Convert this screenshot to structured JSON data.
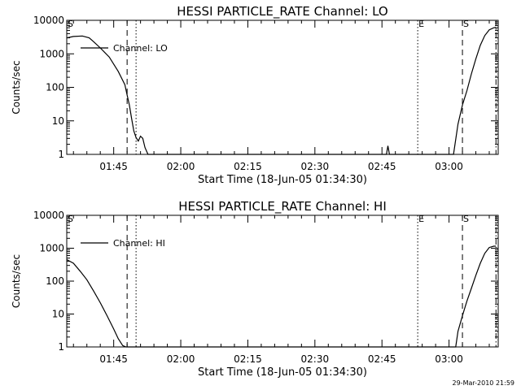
{
  "chart_data": [
    {
      "type": "line",
      "title": "HESSI PARTICLE_RATE Channel: LO",
      "xlabel": "Start Time (18-Jun-05 01:34:30)",
      "ylabel": "Counts/sec",
      "y_scale": "log",
      "ylim": [
        1,
        10000
      ],
      "y_ticks": [
        1,
        10,
        100,
        1000,
        10000
      ],
      "y_tick_labels": [
        "1",
        "10",
        "100",
        "1000",
        "10000"
      ],
      "xlim": [
        "01:34:30",
        "03:11:00"
      ],
      "x_ticks": [
        "01:45",
        "02:00",
        "02:15",
        "02:30",
        "02:45",
        "03:00"
      ],
      "x_tick_labels": [
        "01:45",
        "02:00",
        "02:15",
        "02:30",
        "02:45",
        "03:00"
      ],
      "legend_position": "top-left",
      "series": [
        {
          "name": "Channel: LO",
          "x": [
            "01:34:30",
            "01:36:00",
            "01:38:00",
            "01:39:30",
            "01:40:30",
            "01:42:00",
            "01:44:00",
            "01:46:00",
            "01:47:30",
            "01:48:00",
            "01:48:30",
            "01:49:00",
            "01:49:30",
            "01:50:00",
            "01:50:30",
            "01:51:00",
            "01:51:30",
            "01:52:00",
            "01:52:40",
            "01:53:00",
            "02:46:00",
            "02:46:20",
            "02:46:40",
            "03:01:00",
            "03:02:00",
            "03:03:00",
            "03:04:00",
            "03:05:00",
            "03:06:00",
            "03:07:00",
            "03:08:00",
            "03:09:00",
            "03:10:00",
            "03:10:30"
          ],
          "y": [
            3000,
            3300,
            3400,
            3000,
            2300,
            1500,
            800,
            300,
            120,
            60,
            30,
            12,
            5,
            3.2,
            2.5,
            3.5,
            3,
            1.6,
            1,
            1,
            1,
            1.8,
            1,
            1,
            8,
            30,
            80,
            250,
            700,
            1800,
            3500,
            5200,
            6000,
            6200
          ]
        }
      ],
      "markers": [
        {
          "label": "S",
          "x": "01:34:30",
          "style": "dash-dot"
        },
        {
          "label": "",
          "x": "01:48:00",
          "style": "dashed"
        },
        {
          "label": "",
          "x": "01:50:00",
          "style": "dotted"
        },
        {
          "label": "E",
          "x": "02:53:00",
          "style": "dotted"
        },
        {
          "label": "S",
          "x": "03:03:00",
          "style": "dashed"
        },
        {
          "label": "",
          "x": "03:10:30",
          "style": "dash-dot"
        }
      ]
    },
    {
      "type": "line",
      "title": "HESSI PARTICLE_RATE Channel: HI",
      "xlabel": "Start Time (18-Jun-05 01:34:30)",
      "ylabel": "Counts/sec",
      "y_scale": "log",
      "ylim": [
        1,
        10000
      ],
      "y_ticks": [
        1,
        10,
        100,
        1000,
        10000
      ],
      "y_tick_labels": [
        "1",
        "10",
        "100",
        "1000",
        "10000"
      ],
      "xlim": [
        "01:34:30",
        "03:11:00"
      ],
      "x_ticks": [
        "01:45",
        "02:00",
        "02:15",
        "02:30",
        "02:45",
        "03:00"
      ],
      "x_tick_labels": [
        "01:45",
        "02:00",
        "02:15",
        "02:30",
        "02:45",
        "03:00"
      ],
      "legend_position": "top-left",
      "series": [
        {
          "name": "Channel: HI",
          "x": [
            "01:34:30",
            "01:36:00",
            "01:37:30",
            "01:39:00",
            "01:40:30",
            "01:42:00",
            "01:43:30",
            "01:45:00",
            "01:46:00",
            "01:47:00",
            "01:47:45",
            "01:48:00",
            "03:01:30",
            "03:02:00",
            "03:03:00",
            "03:04:00",
            "03:05:00",
            "03:06:00",
            "03:07:00",
            "03:08:00",
            "03:09:00",
            "03:10:00",
            "03:10:30"
          ],
          "y": [
            450,
            350,
            200,
            110,
            50,
            22,
            9,
            3.5,
            1.8,
            1.1,
            1,
            1,
            1,
            3,
            9,
            25,
            60,
            150,
            350,
            700,
            1050,
            1150,
            1150
          ]
        }
      ],
      "markers": [
        {
          "label": "S",
          "x": "01:34:30",
          "style": "dash-dot"
        },
        {
          "label": "",
          "x": "01:48:00",
          "style": "dashed"
        },
        {
          "label": "",
          "x": "01:50:00",
          "style": "dotted"
        },
        {
          "label": "E",
          "x": "02:53:00",
          "style": "dotted"
        },
        {
          "label": "S",
          "x": "03:03:00",
          "style": "dashed"
        },
        {
          "label": "",
          "x": "03:10:30",
          "style": "dash-dot"
        }
      ]
    }
  ],
  "footer": {
    "timestamp": "29-Mar-2010 21:59"
  }
}
